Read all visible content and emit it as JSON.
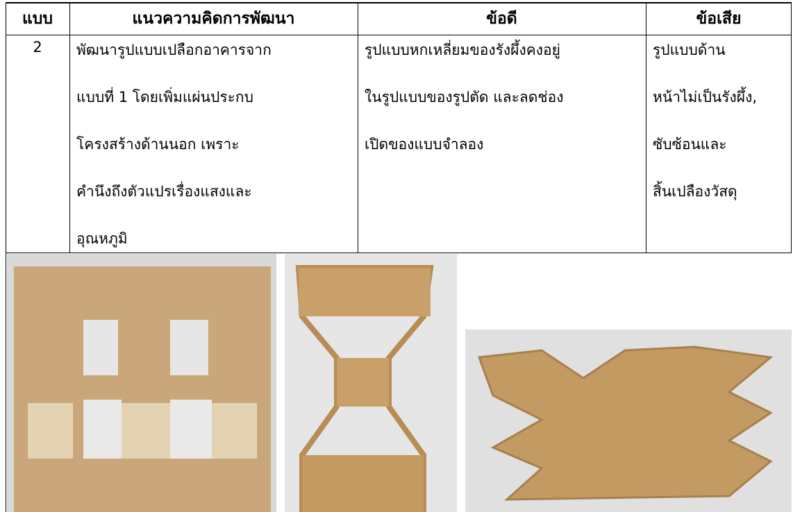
{
  "table": {
    "header": [
      "แบบ",
      "แนวความคิดการพัฒนา",
      "ข้อดี",
      "ข้อเสีย"
    ],
    "rows": [
      [
        "2",
        [
          "พัฒนารูปแบบเปลือกอาคารจาก",
          "แบบที่ 1   โดยเพิ่มแผ่นประกบ",
          "โครงสร้างด้านนอก เพราะ",
          "คำนึงถึงตัวแปรเรื่องแสงและ",
          "อุณหภูมิ"
        ],
        [
          "รูปแบบหกเหลี่ยมของรังผึ้งคงอยู่",
          "ในรูปแบบของรูปตัด และลดช่อง",
          "เปิดของแบบจำลอง"
        ],
        [
          "รูปแบบด้าน",
          "หน้าไม่เป็นรังผึ้ง,",
          "ซับซ้อนและ",
          "สิ้นเปลืองวัสดุ"
        ]
      ]
    ]
  }
}
